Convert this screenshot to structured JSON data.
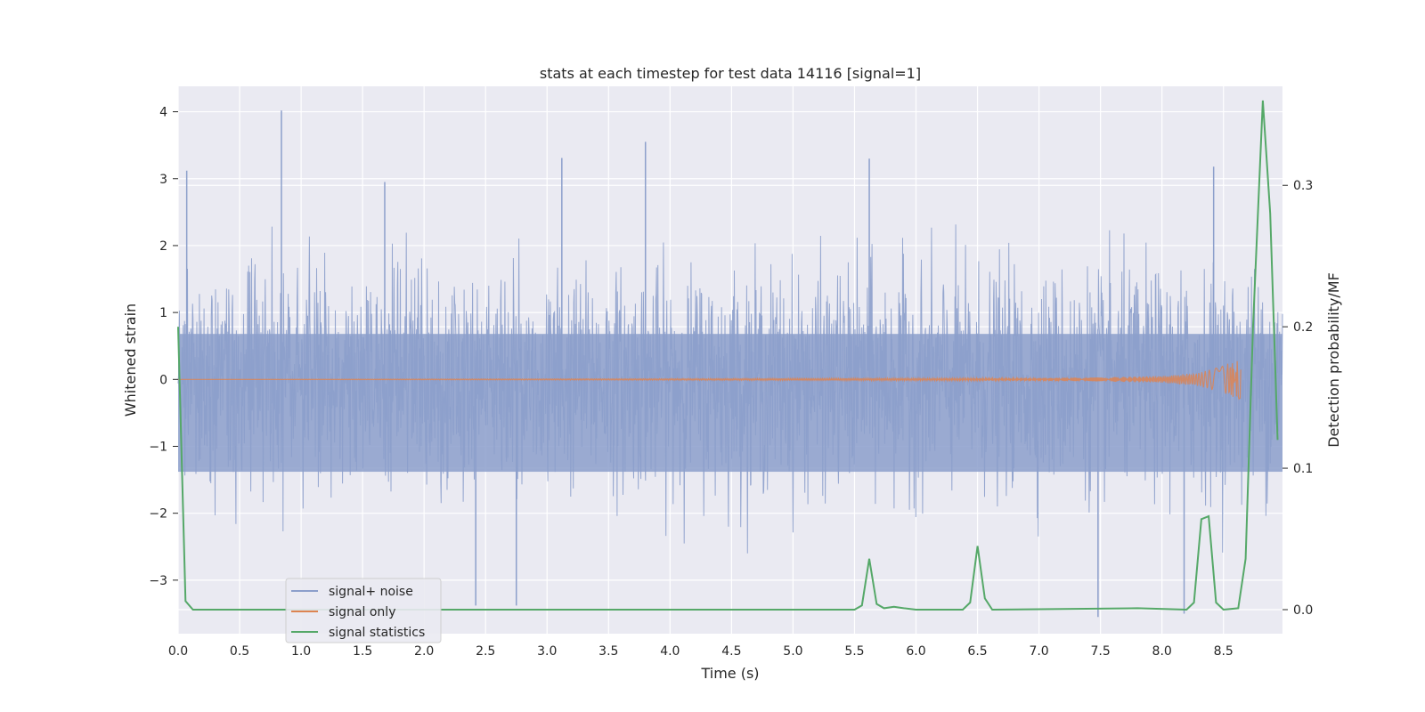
{
  "chart_data": {
    "type": "line",
    "title": "stats at each timestep for test data 14116 [signal=1]",
    "xlabel": "Time (s)",
    "ylabel": "Whitened strain",
    "ylabel_right": "Detection probability/MF",
    "xlim": [
      0.0,
      8.98
    ],
    "ylim": [
      -3.8,
      4.38
    ],
    "ylim_right": [
      -0.017,
      0.37
    ],
    "xticks": [
      "0.0",
      "0.5",
      "1.0",
      "1.5",
      "2.0",
      "2.5",
      "3.0",
      "3.5",
      "4.0",
      "4.5",
      "5.0",
      "5.5",
      "6.0",
      "6.5",
      "7.0",
      "7.5",
      "8.0",
      "8.5"
    ],
    "yticks": [
      "4",
      "3",
      "2",
      "1",
      "0",
      "−1",
      "−2",
      "−3"
    ],
    "yticks_right": [
      "0.0",
      "0.1",
      "0.2",
      "0.3"
    ],
    "grid": true,
    "legend_position": "lower-left",
    "colors": {
      "noise": "#8c9fcb",
      "signal": "#dd8452",
      "stats": "#55a868",
      "background": "#eaeaf2",
      "grid": "#ffffff"
    },
    "series": [
      {
        "name": "signal+ noise",
        "axis": "left",
        "description_values": "white noise, sd approx 0.8, max spike 4.02 at t=0.84",
        "peaks": [
          [
            0.07,
            3.12
          ],
          [
            0.84,
            4.02
          ],
          [
            1.68,
            2.95
          ],
          [
            3.12,
            3.31
          ],
          [
            3.8,
            3.55
          ],
          [
            5.62,
            3.3
          ],
          [
            8.42,
            3.18
          ],
          [
            2.42,
            -3.38
          ],
          [
            2.75,
            -3.38
          ],
          [
            7.48,
            -3.55
          ],
          [
            8.18,
            -3.5
          ]
        ]
      },
      {
        "name": "signal only",
        "axis": "left",
        "x": [
          0.0,
          7.0,
          7.5,
          8.0,
          8.3,
          8.5,
          8.6,
          8.64
        ],
        "y": [
          0.0,
          0.02,
          0.03,
          0.05,
          0.1,
          0.2,
          0.3,
          0.3
        ]
      },
      {
        "name": "signal statistics",
        "axis": "right",
        "x": [
          0.0,
          0.06,
          0.12,
          0.2,
          5.5,
          5.56,
          5.62,
          5.68,
          5.74,
          5.82,
          5.9,
          6.0,
          6.38,
          6.44,
          6.5,
          6.56,
          6.62,
          7.8,
          8.2,
          8.26,
          8.32,
          8.38,
          8.44,
          8.5,
          8.62,
          8.68,
          8.74,
          8.82,
          8.88,
          8.94
        ],
        "y": [
          0.2,
          0.006,
          0.0,
          0.0,
          0.0,
          0.003,
          0.036,
          0.004,
          0.001,
          0.002,
          0.001,
          0.0,
          0.0,
          0.005,
          0.045,
          0.008,
          0.0,
          0.001,
          0.0,
          0.005,
          0.064,
          0.066,
          0.005,
          0.0,
          0.001,
          0.036,
          0.2,
          0.36,
          0.28,
          0.12
        ]
      }
    ]
  }
}
